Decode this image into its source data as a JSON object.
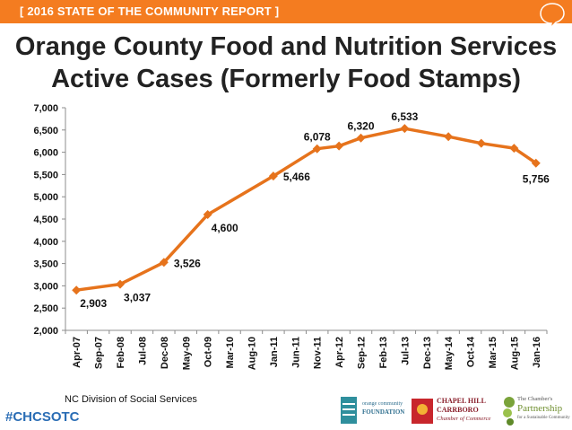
{
  "header": {
    "banner": "[ 2016 STATE OF THE COMMUNITY REPORT ]",
    "accent": "#f47c20"
  },
  "title": {
    "line1": "Orange County Food and Nutrition Services",
    "line2": "Active Cases (Formerly Food Stamps)"
  },
  "chart_data": {
    "type": "line",
    "title": "Orange County Food and Nutrition Services Active Cases (Formerly Food Stamps)",
    "xlabel": "",
    "ylabel": "",
    "ylim": [
      2000,
      7000
    ],
    "yticks": [
      2000,
      2500,
      3000,
      3500,
      4000,
      4500,
      5000,
      5500,
      6000,
      6500,
      7000
    ],
    "ytick_labels": [
      "2,000",
      "2,500",
      "3,000",
      "3,500",
      "4,000",
      "4,500",
      "5,000",
      "5,500",
      "6,000",
      "6,500",
      "7,000"
    ],
    "categories": [
      "Apr-07",
      "Sep-07",
      "Feb-08",
      "Jul-08",
      "Dec-08",
      "May-09",
      "Oct-09",
      "Mar-10",
      "Aug-10",
      "Jan-11",
      "Jun-11",
      "Nov-11",
      "Apr-12",
      "Sep-12",
      "Feb-13",
      "Jul-13",
      "Dec-13",
      "May-14",
      "Oct-14",
      "Mar-15",
      "Aug-15",
      "Jan-16"
    ],
    "series": [
      {
        "name": "Active Cases",
        "color": "#e6731c",
        "points": [
          {
            "x": 0,
            "y": 2903
          },
          {
            "x": 2,
            "y": 3037
          },
          {
            "x": 4,
            "y": 3526
          },
          {
            "x": 6,
            "y": 4600
          },
          {
            "x": 9,
            "y": 5466
          },
          {
            "x": 11,
            "y": 6078
          },
          {
            "x": 12,
            "y": 6140
          },
          {
            "x": 13,
            "y": 6320
          },
          {
            "x": 15,
            "y": 6533
          },
          {
            "x": 17,
            "y": 6350
          },
          {
            "x": 18.5,
            "y": 6200
          },
          {
            "x": 20,
            "y": 6090
          },
          {
            "x": 21,
            "y": 5756
          }
        ]
      }
    ],
    "data_labels": [
      {
        "x": 0,
        "y": 2903,
        "text": "2,903",
        "pos": "below-right"
      },
      {
        "x": 2,
        "y": 3037,
        "text": "3,037",
        "pos": "below-right"
      },
      {
        "x": 4,
        "y": 3526,
        "text": "3,526",
        "pos": "right"
      },
      {
        "x": 6,
        "y": 4600,
        "text": "4,600",
        "pos": "below-right"
      },
      {
        "x": 9,
        "y": 5466,
        "text": "5,466",
        "pos": "right"
      },
      {
        "x": 11,
        "y": 6078,
        "text": "6,078",
        "pos": "above"
      },
      {
        "x": 13,
        "y": 6320,
        "text": "6,320",
        "pos": "above"
      },
      {
        "x": 15,
        "y": 6533,
        "text": "6,533",
        "pos": "above"
      },
      {
        "x": 21,
        "y": 5756,
        "text": "5,756",
        "pos": "below"
      }
    ]
  },
  "footer": {
    "source": "NC Division of Social Services",
    "hashtag": "#CHCSOTC",
    "logos": {
      "foundation": [
        "orange community",
        "FOUNDATION"
      ],
      "chamber": [
        "CHAPEL HILL",
        "CARRBORO",
        "Chamber of Commerce"
      ],
      "partnership": [
        "The Chamber's",
        "Partnership",
        "for a Sustainable Community"
      ]
    }
  }
}
